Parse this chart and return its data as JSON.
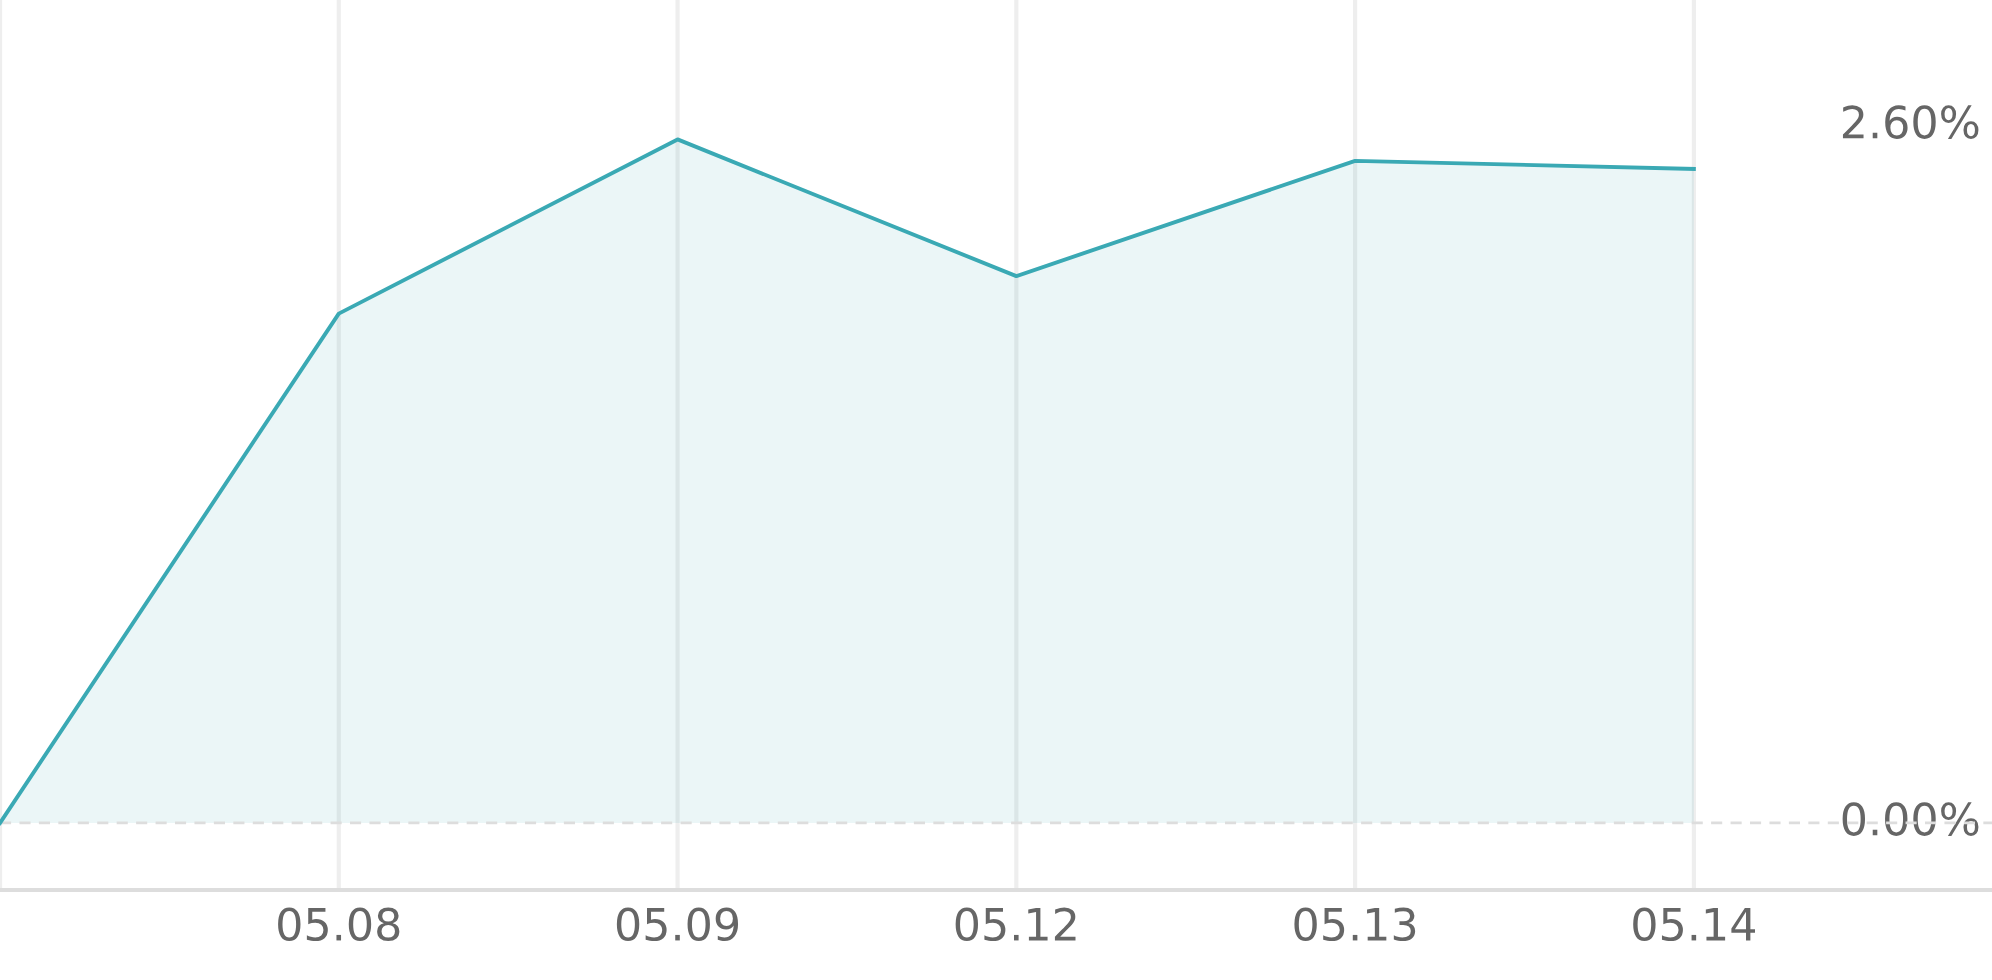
{
  "chart_data": {
    "type": "area",
    "categories": [
      null,
      "05.08",
      "05.09",
      "05.12",
      "05.13",
      "05.14"
    ],
    "series": [
      {
        "color": "#3aa9b4",
        "values": [
          0,
          1.9,
          2.55,
          2.04,
          2.47,
          2.44
        ]
      }
    ],
    "ylim": [
      -0.25,
      3.07
    ],
    "yticks": [
      {
        "value": 0,
        "label": "0.00%"
      },
      {
        "value": 2.6,
        "label": "2.60%"
      }
    ],
    "grid": "x",
    "legend": false,
    "ref_lines": [
      {
        "axis": "y",
        "value": 0,
        "color": "#dddddd",
        "line_style": "dashed"
      }
    ]
  }
}
